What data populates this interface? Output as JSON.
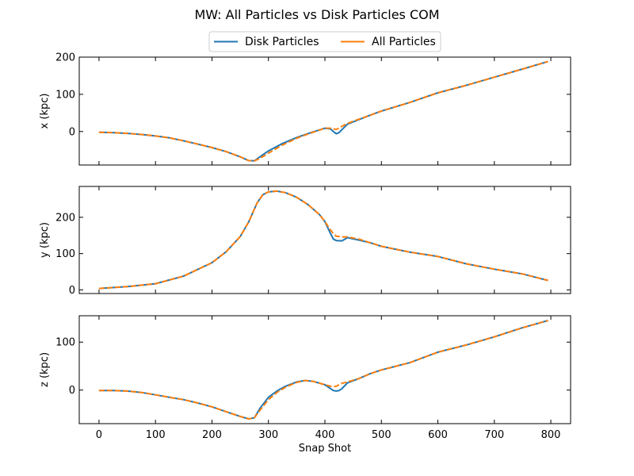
{
  "title": "MW: All Particles vs Disk Particles COM",
  "legend": {
    "placement": "top-center",
    "entries": [
      {
        "label": "Disk Particles",
        "color": "#1f77b4",
        "style": "solid"
      },
      {
        "label": "All Particles",
        "color": "#ff7f0e",
        "style": "dashed"
      }
    ]
  },
  "chart_data": [
    {
      "type": "line",
      "ylabel": "x (kpc)",
      "xlabel": "",
      "xlim": [
        -35,
        835
      ],
      "ylim": [
        -90,
        200
      ],
      "xticks": [
        0,
        100,
        200,
        300,
        400,
        500,
        600,
        700,
        800
      ],
      "yticks": [
        0,
        100,
        200
      ],
      "series": [
        {
          "name": "Disk Particles",
          "color": "#1f77b4",
          "x": [
            0,
            25,
            50,
            75,
            100,
            125,
            150,
            175,
            200,
            225,
            250,
            265,
            275,
            285,
            300,
            325,
            350,
            375,
            400,
            410,
            415,
            420,
            425,
            430,
            440,
            460,
            480,
            500,
            550,
            600,
            650,
            700,
            750,
            795
          ],
          "y": [
            -2,
            -3,
            -5,
            -8,
            -12,
            -17,
            -25,
            -34,
            -43,
            -54,
            -68,
            -78,
            -79,
            -68,
            -52,
            -32,
            -16,
            -3,
            9,
            7,
            0,
            -6,
            -3,
            5,
            20,
            32,
            44,
            55,
            78,
            104,
            124,
            146,
            168,
            188
          ]
        },
        {
          "name": "All Particles",
          "color": "#ff7f0e",
          "x": [
            0,
            25,
            50,
            75,
            100,
            125,
            150,
            175,
            200,
            225,
            250,
            265,
            275,
            285,
            300,
            325,
            350,
            375,
            400,
            410,
            415,
            420,
            425,
            430,
            440,
            460,
            480,
            500,
            550,
            600,
            650,
            700,
            750,
            795
          ],
          "y": [
            -2,
            -3,
            -5,
            -8,
            -12,
            -17,
            -25,
            -34,
            -43,
            -54,
            -68,
            -78,
            -79,
            -72,
            -58,
            -36,
            -18,
            -4,
            9,
            9,
            7,
            6,
            9,
            14,
            22,
            33,
            44,
            55,
            78,
            104,
            124,
            146,
            168,
            188
          ]
        }
      ]
    },
    {
      "type": "line",
      "ylabel": "y (kpc)",
      "xlabel": "",
      "xlim": [
        -35,
        835
      ],
      "ylim": [
        -10,
        285
      ],
      "xticks": [
        0,
        100,
        200,
        300,
        400,
        500,
        600,
        700,
        800
      ],
      "yticks": [
        0,
        100,
        200
      ],
      "series": [
        {
          "name": "Disk Particles",
          "color": "#1f77b4",
          "x": [
            0,
            50,
            100,
            150,
            200,
            225,
            250,
            265,
            280,
            290,
            300,
            315,
            330,
            350,
            370,
            390,
            400,
            410,
            415,
            420,
            430,
            440,
            460,
            480,
            500,
            550,
            600,
            650,
            700,
            750,
            795
          ],
          "y": [
            4,
            9,
            17,
            38,
            75,
            105,
            147,
            187,
            240,
            262,
            270,
            272,
            268,
            255,
            235,
            208,
            188,
            155,
            140,
            136,
            135,
            144,
            137,
            130,
            120,
            104,
            92,
            72,
            57,
            44,
            26
          ]
        },
        {
          "name": "All Particles",
          "color": "#ff7f0e",
          "x": [
            0,
            50,
            100,
            150,
            200,
            225,
            250,
            265,
            280,
            290,
            300,
            315,
            330,
            350,
            370,
            390,
            400,
            410,
            415,
            420,
            430,
            440,
            460,
            480,
            500,
            550,
            600,
            650,
            700,
            750,
            795
          ],
          "y": [
            4,
            9,
            17,
            38,
            75,
            105,
            147,
            187,
            240,
            262,
            270,
            272,
            268,
            255,
            235,
            208,
            188,
            165,
            155,
            148,
            146,
            146,
            140,
            130,
            120,
            104,
            92,
            72,
            57,
            44,
            26
          ]
        }
      ]
    },
    {
      "type": "line",
      "ylabel": "z (kpc)",
      "xlabel": "Snap Shot",
      "xlim": [
        -35,
        835
      ],
      "ylim": [
        -70,
        155
      ],
      "xticks": [
        0,
        100,
        200,
        300,
        400,
        500,
        600,
        700,
        800
      ],
      "yticks": [
        0,
        100
      ],
      "series": [
        {
          "name": "Disk Particles",
          "color": "#1f77b4",
          "x": [
            0,
            25,
            50,
            75,
            100,
            125,
            150,
            175,
            200,
            225,
            250,
            265,
            275,
            285,
            300,
            315,
            330,
            350,
            365,
            380,
            400,
            410,
            415,
            420,
            425,
            430,
            440,
            460,
            480,
            500,
            550,
            600,
            650,
            700,
            750,
            795
          ],
          "y": [
            -1,
            -1,
            -2,
            -5,
            -10,
            -15,
            -20,
            -27,
            -35,
            -45,
            -55,
            -60,
            -58,
            -38,
            -15,
            -2,
            8,
            17,
            20,
            18,
            11,
            3,
            -1,
            -2,
            -1,
            3,
            15,
            24,
            34,
            42,
            57,
            79,
            94,
            111,
            130,
            145
          ]
        },
        {
          "name": "All Particles",
          "color": "#ff7f0e",
          "x": [
            0,
            25,
            50,
            75,
            100,
            125,
            150,
            175,
            200,
            225,
            250,
            265,
            275,
            285,
            300,
            315,
            330,
            350,
            365,
            380,
            400,
            410,
            415,
            420,
            425,
            430,
            440,
            460,
            480,
            500,
            550,
            600,
            650,
            700,
            750,
            795
          ],
          "y": [
            -1,
            -1,
            -2,
            -5,
            -10,
            -15,
            -20,
            -27,
            -35,
            -45,
            -55,
            -60,
            -58,
            -42,
            -20,
            -5,
            6,
            16,
            20,
            18,
            11,
            8,
            7,
            8,
            11,
            14,
            17,
            24,
            34,
            42,
            57,
            79,
            94,
            111,
            130,
            145
          ]
        }
      ]
    }
  ]
}
